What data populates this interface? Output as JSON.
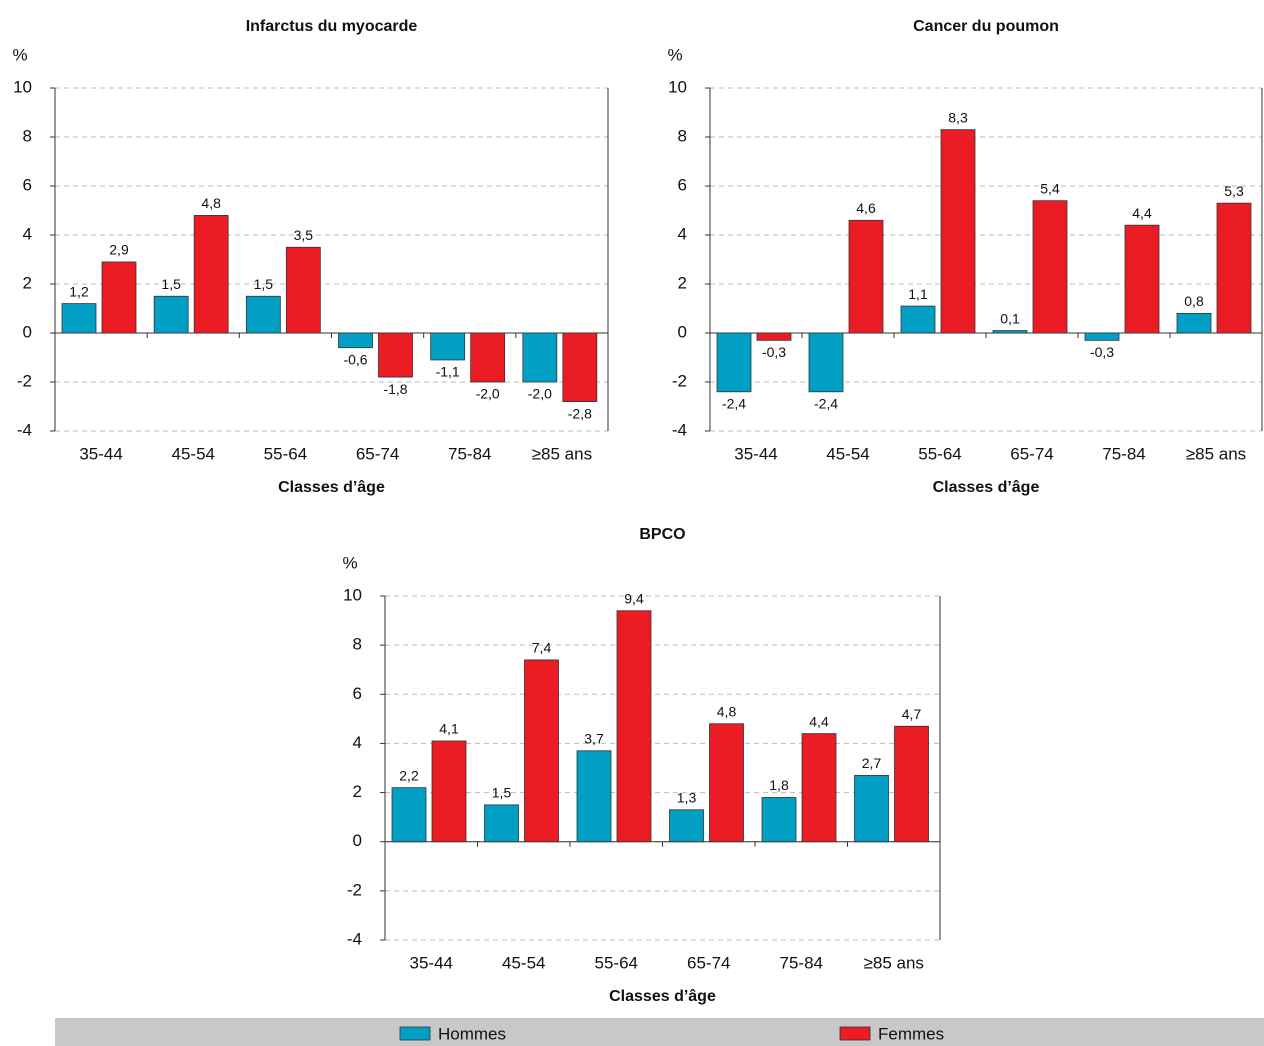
{
  "chart_data": [
    {
      "type": "bar",
      "title": "Infarctus du myocarde",
      "y_label": "%",
      "x_label": "Classes d’âge",
      "categories": [
        "35-44",
        "45-54",
        "55-64",
        "65-74",
        "75-84",
        "≥85 ans"
      ],
      "series": [
        {
          "name": "Hommes",
          "color": "#009fc3",
          "values": [
            1.2,
            1.5,
            1.5,
            -0.6,
            -1.1,
            -2.0
          ],
          "value_labels": [
            "1,2",
            "1,5",
            "1,5",
            "-0,6",
            "-1,1",
            "-2,0"
          ]
        },
        {
          "name": "Femmes",
          "color": "#ec1c24",
          "values": [
            2.9,
            4.8,
            3.5,
            -1.8,
            -2.0,
            -2.8
          ],
          "value_labels": [
            "2,9",
            "4,8",
            "3,5",
            "-1,8",
            "-2,0",
            "-2,8"
          ]
        }
      ],
      "ylim": [
        -4,
        10
      ],
      "yticks": [
        -4,
        -2,
        0,
        2,
        4,
        6,
        8,
        10
      ],
      "grid": true,
      "legend": "bottom"
    },
    {
      "type": "bar",
      "title": "Cancer du poumon",
      "y_label": "%",
      "x_label": "Classes d’âge",
      "categories": [
        "35-44",
        "45-54",
        "55-64",
        "65-74",
        "75-84",
        "≥85 ans"
      ],
      "series": [
        {
          "name": "Hommes",
          "color": "#009fc3",
          "values": [
            -2.4,
            -2.4,
            1.1,
            0.1,
            -0.3,
            0.8
          ],
          "value_labels": [
            "-2,4",
            "-2,4",
            "1,1",
            "0,1",
            "-0,3",
            "0,8"
          ]
        },
        {
          "name": "Femmes",
          "color": "#ec1c24",
          "values": [
            -0.3,
            4.6,
            8.3,
            5.4,
            4.4,
            5.3
          ],
          "value_labels": [
            "-0,3",
            "4,6",
            "8,3",
            "5,4",
            "4,4",
            "5,3"
          ]
        }
      ],
      "ylim": [
        -4,
        10
      ],
      "yticks": [
        -4,
        -2,
        0,
        2,
        4,
        6,
        8,
        10
      ],
      "grid": true
    },
    {
      "type": "bar",
      "title": "BPCO",
      "y_label": "%",
      "x_label": "Classes d’âge",
      "categories": [
        "35-44",
        "45-54",
        "55-64",
        "65-74",
        "75-84",
        "≥85 ans"
      ],
      "series": [
        {
          "name": "Hommes",
          "color": "#009fc3",
          "values": [
            2.2,
            1.5,
            3.7,
            1.3,
            1.8,
            2.7
          ],
          "value_labels": [
            "2,2",
            "1,5",
            "3,7",
            "1,3",
            "1,8",
            "2,7"
          ]
        },
        {
          "name": "Femmes",
          "color": "#ec1c24",
          "values": [
            4.1,
            7.4,
            9.4,
            4.8,
            4.4,
            4.7
          ],
          "value_labels": [
            "4,1",
            "7,4",
            "9,4",
            "4,8",
            "4,4",
            "4,7"
          ]
        }
      ],
      "ylim": [
        -4,
        10
      ],
      "yticks": [
        -4,
        -2,
        0,
        2,
        4,
        6,
        8,
        10
      ],
      "grid": true
    }
  ]
}
